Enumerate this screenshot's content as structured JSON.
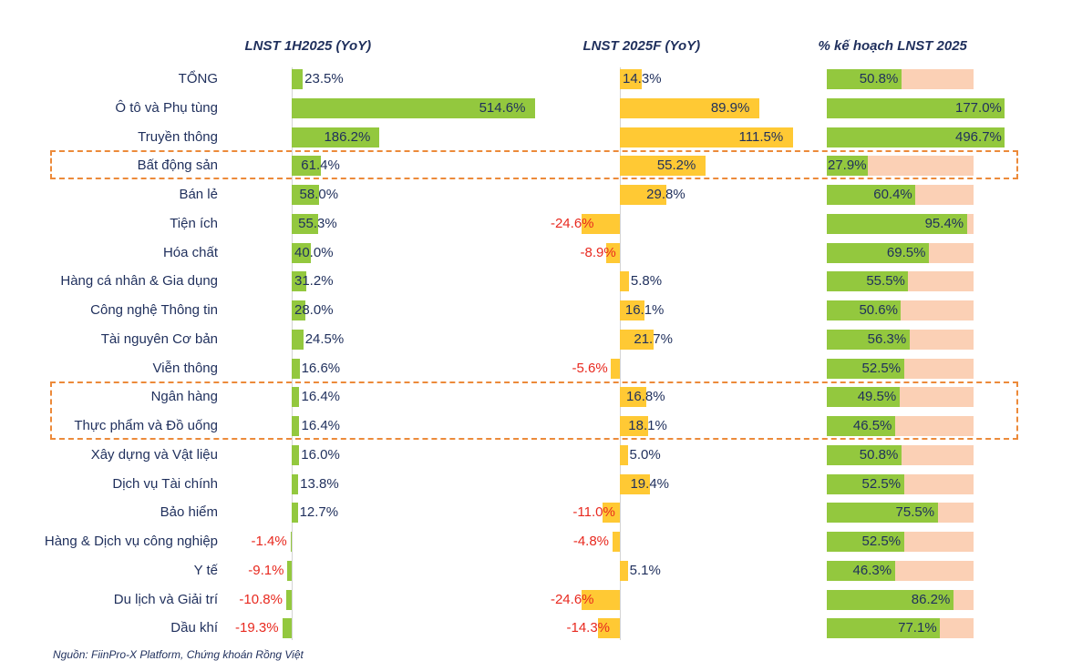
{
  "chart_data": {
    "type": "bar",
    "orientation": "horizontal",
    "categories": [
      "TỔNG",
      "Ô tô và Phụ tùng",
      "Truyền thông",
      "Bất động sản",
      "Bán lẻ",
      "Tiện ích",
      "Hóa chất",
      "Hàng cá nhân & Gia dụng",
      "Công nghệ Thông tin",
      "Tài nguyên Cơ bản",
      "Viễn thông",
      "Ngân hàng",
      "Thực phẩm và Đồ uống",
      "Xây dựng và Vật liệu",
      "Dịch vụ Tài chính",
      "Bảo hiểm",
      "Hàng & Dịch vụ công nghiệp",
      "Y tế",
      "Du lịch và Giải trí",
      "Dầu khí"
    ],
    "series": [
      {
        "name": "LNST 1H2025 (YoY)",
        "color": "#93c83e",
        "values": [
          23.5,
          514.6,
          186.2,
          61.4,
          58.0,
          55.3,
          40.0,
          31.2,
          28.0,
          24.5,
          16.6,
          16.4,
          16.4,
          16.0,
          13.8,
          12.7,
          -1.4,
          -9.1,
          -10.8,
          -19.3
        ],
        "labels": [
          "23.5%",
          "514.6%",
          "186.2%",
          "61.4%",
          "58.0%",
          "55.3%",
          "40.0%",
          "31.2%",
          "28.0%",
          "24.5%",
          "16.6%",
          "16.4%",
          "16.4%",
          "16.0%",
          "13.8%",
          "12.7%",
          "-1.4%",
          "-9.1%",
          "-10.8%",
          "-19.3%"
        ]
      },
      {
        "name": "LNST 2025F (YoY)",
        "color": "#ffc934",
        "values": [
          14.3,
          89.9,
          111.5,
          55.2,
          29.8,
          -24.6,
          -8.9,
          5.8,
          16.1,
          21.7,
          -5.6,
          16.8,
          18.1,
          5.0,
          19.4,
          -11.0,
          -4.8,
          5.1,
          -24.6,
          -14.3
        ],
        "labels": [
          "14.3%",
          "89.9%",
          "111.5%",
          "55.2%",
          "29.8%",
          "-24.6%",
          "-8.9%",
          "5.8%",
          "16.1%",
          "21.7%",
          "-5.6%",
          "16.8%",
          "18.1%",
          "5.0%",
          "19.4%",
          "-11.0%",
          "-4.8%",
          "5.1%",
          "-24.6%",
          "-14.3%"
        ]
      },
      {
        "name": "% kế hoạch LNST 2025",
        "color": "#93c83e",
        "remainder_color": "#fbd0b5",
        "values": [
          50.8,
          177.0,
          496.7,
          27.9,
          60.4,
          95.4,
          69.5,
          55.5,
          50.6,
          56.3,
          52.5,
          49.5,
          46.5,
          50.8,
          52.5,
          75.5,
          52.5,
          46.3,
          86.2,
          77.1
        ],
        "labels": [
          "50.8%",
          "177.0%",
          "496.7%",
          "27.9%",
          "60.4%",
          "95.4%",
          "69.5%",
          "55.5%",
          "50.6%",
          "56.3%",
          "52.5%",
          "49.5%",
          "46.5%",
          "50.8%",
          "52.5%",
          "75.5%",
          "52.5%",
          "46.3%",
          "86.2%",
          "77.1%"
        ]
      }
    ],
    "highlighted_categories": [
      [
        "Bất động sản"
      ],
      [
        "Ngân hàng",
        "Thực phẩm và Đồ uống"
      ]
    ],
    "highlight_color": "#ec8a3a"
  },
  "footnote": "Nguồn: FiinPro-X Platform, Chứng khoán Rồng Việt"
}
